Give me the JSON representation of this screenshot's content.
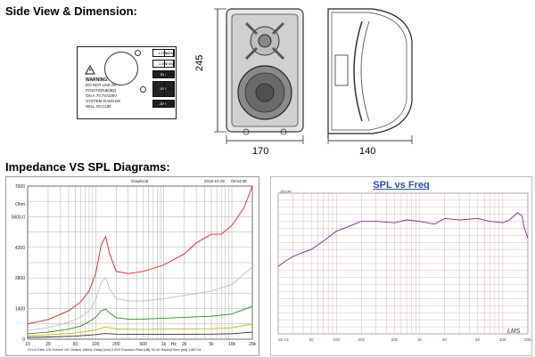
{
  "headings": {
    "side_view": "Side View & Dimension:",
    "diagrams": "Impedance VS SPL Diagrams:"
  },
  "dimensions": {
    "height": "245",
    "width": "170",
    "depth": "140"
  },
  "rear_plate": {
    "warning_lines": [
      "WARNING:",
      "DO NOT USE IN",
      "POSITION⊗(8Ω)",
      "ON A 70.7V/100V",
      "SYSTEM DAMAGE",
      "WILL OCCUR"
    ],
    "taps_left": [
      "1.25W",
      "2.5W",
      "5W",
      "10W",
      "20W"
    ],
    "taps_right": [
      "0.6W",
      "1.5W",
      "2.5W",
      "100V",
      "N.C."
    ]
  },
  "impedance_chart": {
    "header_left": "Graphical",
    "header_date": "2018-10-25",
    "header_time": "09:54:39",
    "footer": "CH-A   Ohm   1/6 Octave   1/6 Octave   48kHz   Delay [ms] 0.000   Duration Rise [dB] 30.00   SweepTime [ms] 1367.61"
  },
  "spl_chart": {
    "title": "SPL vs Freq",
    "y_unit": "dBSPL",
    "watermark": "LMS"
  },
  "chart_data": [
    {
      "type": "line",
      "title": "",
      "xlabel": "Hz",
      "ylabel": "Ohm",
      "x_scale": "log",
      "xlim": [
        10,
        20000
      ],
      "ylim": [
        0,
        7000
      ],
      "y_ticks": [
        "0",
        "1400",
        "2800",
        "4200",
        "5600.0",
        "7000"
      ],
      "x_ticks": [
        "10",
        "20",
        "50",
        "100",
        "200",
        "500",
        "1k",
        "2k",
        "5k",
        "10k",
        "20k"
      ],
      "grid": true,
      "series": [
        {
          "color": "#e02020",
          "x": [
            10,
            20,
            40,
            60,
            80,
            100,
            120,
            140,
            160,
            200,
            300,
            500,
            1000,
            2000,
            3000,
            5000,
            7000,
            10000,
            15000,
            20000
          ],
          "values": [
            700,
            900,
            1300,
            1700,
            2200,
            3000,
            4300,
            4700,
            3900,
            3100,
            3000,
            3100,
            3400,
            3900,
            4400,
            4800,
            4800,
            5200,
            6000,
            7000
          ]
        },
        {
          "color": "#bfbfbf",
          "x": [
            10,
            20,
            40,
            60,
            80,
            100,
            120,
            140,
            160,
            200,
            300,
            500,
            1000,
            2000,
            5000,
            10000,
            20000
          ],
          "values": [
            400,
            520,
            780,
            1000,
            1300,
            1800,
            2600,
            2800,
            2300,
            1850,
            1750,
            1750,
            1850,
            2000,
            2200,
            2500,
            3300
          ]
        },
        {
          "color": "#2a8a2a",
          "x": [
            10,
            20,
            40,
            60,
            80,
            100,
            120,
            140,
            160,
            200,
            300,
            500,
            1000,
            2000,
            5000,
            10000,
            20000
          ],
          "values": [
            250,
            320,
            460,
            600,
            800,
            1000,
            1300,
            1380,
            1200,
            980,
            920,
            920,
            960,
            1000,
            1050,
            1150,
            1500
          ]
        },
        {
          "color": "#c8b400",
          "x": [
            10,
            20,
            50,
            100,
            140,
            200,
            500,
            1000,
            5000,
            10000,
            20000
          ],
          "values": [
            160,
            200,
            280,
            420,
            560,
            470,
            450,
            460,
            480,
            520,
            700
          ]
        },
        {
          "color": "#303030",
          "x": [
            10,
            20,
            50,
            100,
            140,
            200,
            500,
            1000,
            5000,
            10000,
            20000
          ],
          "values": [
            80,
            100,
            140,
            210,
            260,
            230,
            220,
            220,
            230,
            250,
            330
          ]
        }
      ]
    },
    {
      "type": "line",
      "title": "SPL vs Freq",
      "xlabel": "",
      "ylabel": "dBSPL",
      "x_scale": "log",
      "xlim": [
        20,
        20000
      ],
      "ylim": [
        0,
        100
      ],
      "x_ticks": [
        "20 Hz",
        "50",
        "100",
        "200",
        "500",
        "1K",
        "2K",
        "5K",
        "10K",
        "20K"
      ],
      "grid": true,
      "series": [
        {
          "color": "#7a2c8a",
          "x": [
            20,
            25,
            30,
            40,
            50,
            70,
            100,
            150,
            200,
            300,
            500,
            700,
            1000,
            1500,
            2000,
            3000,
            5000,
            7000,
            10000,
            12000,
            15000,
            17000,
            18000,
            20000
          ],
          "values": [
            48,
            52,
            55,
            58,
            60,
            66,
            73,
            77,
            80,
            80,
            79,
            81,
            80,
            78,
            82,
            81,
            82,
            80,
            79,
            81,
            86,
            84,
            76,
            68
          ]
        }
      ]
    }
  ]
}
